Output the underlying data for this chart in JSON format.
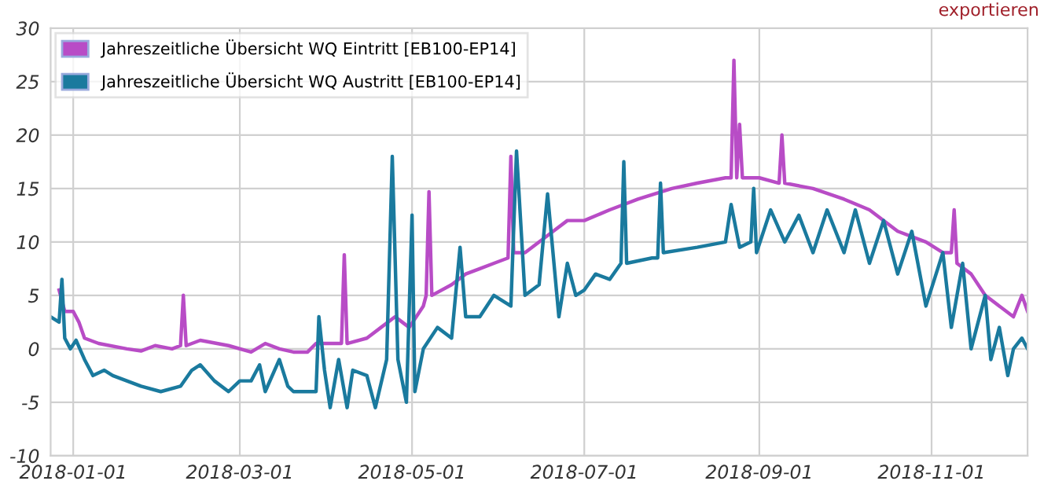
{
  "chart_data": {
    "type": "line",
    "xlim": [
      "2017-12-24",
      "2018-12-05"
    ],
    "xticks": [
      "2018-01-01",
      "2018-03-01",
      "2018-05-01",
      "2018-07-01",
      "2018-09-01",
      "2018-11-01"
    ],
    "ylim": [
      -10,
      30
    ],
    "yticks": [
      -10,
      -5,
      0,
      5,
      10,
      15,
      20,
      25,
      30
    ],
    "grid": true,
    "legend": "top left",
    "marker": "none",
    "line_style": "solid",
    "annotations": [
      "exportieren"
    ],
    "series": [
      {
        "name": "Jahreszeitliche Übersicht WQ Eintritt [EB100-EP14]",
        "color": "#b84cc6",
        "x": [
          "2017-12-27",
          "2017-12-29",
          "2018-01-01",
          "2018-01-03",
          "2018-01-05",
          "2018-01-10",
          "2018-01-20",
          "2018-01-25",
          "2018-01-30",
          "2018-02-05",
          "2018-02-08",
          "2018-02-09",
          "2018-02-10",
          "2018-02-15",
          "2018-02-25",
          "2018-03-05",
          "2018-03-10",
          "2018-03-15",
          "2018-03-20",
          "2018-03-25",
          "2018-03-28",
          "2018-04-03",
          "2018-04-06",
          "2018-04-07",
          "2018-04-08",
          "2018-04-15",
          "2018-04-20",
          "2018-04-25",
          "2018-04-30",
          "2018-05-05",
          "2018-05-06",
          "2018-05-07",
          "2018-05-08",
          "2018-05-15",
          "2018-05-20",
          "2018-05-25",
          "2018-05-30",
          "2018-06-04",
          "2018-06-05",
          "2018-06-06",
          "2018-06-10",
          "2018-06-20",
          "2018-06-25",
          "2018-07-01",
          "2018-07-10",
          "2018-07-20",
          "2018-08-01",
          "2018-08-10",
          "2018-08-20",
          "2018-08-22",
          "2018-08-23",
          "2018-08-24",
          "2018-08-25",
          "2018-08-26",
          "2018-08-27",
          "2018-09-01",
          "2018-09-08",
          "2018-09-09",
          "2018-09-10",
          "2018-09-20",
          "2018-10-01",
          "2018-10-10",
          "2018-10-20",
          "2018-10-30",
          "2018-11-05",
          "2018-11-08",
          "2018-11-09",
          "2018-11-10",
          "2018-11-15",
          "2018-11-20",
          "2018-11-25",
          "2018-11-30",
          "2018-12-03",
          "2018-12-05"
        ],
        "values": [
          5.5,
          3.5,
          3.5,
          2.5,
          1,
          0.5,
          0,
          -0.2,
          0.3,
          0,
          0.3,
          5,
          0.3,
          0.8,
          0.3,
          -0.3,
          0.5,
          0,
          -0.3,
          -0.3,
          0.5,
          0.5,
          0.5,
          8.8,
          0.5,
          1,
          2,
          3,
          2,
          4,
          5,
          14.7,
          5,
          6,
          7,
          7.5,
          8,
          8.5,
          18,
          9,
          9,
          11,
          12,
          12,
          13,
          14,
          15,
          15.5,
          16,
          16,
          27,
          16,
          21,
          16,
          16,
          16,
          15.5,
          20,
          15.5,
          15,
          14,
          13,
          11,
          10,
          9,
          9,
          13,
          8,
          7,
          5,
          4,
          3,
          5,
          3.5
        ]
      },
      {
        "name": "Jahreszeitliche Übersicht WQ Austritt [EB100-EP14]",
        "color": "#1a7a9e",
        "x": [
          "2017-12-24",
          "2017-12-27",
          "2017-12-28",
          "2017-12-29",
          "2017-12-31",
          "2018-01-02",
          "2018-01-05",
          "2018-01-08",
          "2018-01-12",
          "2018-01-15",
          "2018-01-25",
          "2018-02-01",
          "2018-02-08",
          "2018-02-12",
          "2018-02-15",
          "2018-02-20",
          "2018-02-25",
          "2018-03-01",
          "2018-03-05",
          "2018-03-08",
          "2018-03-10",
          "2018-03-15",
          "2018-03-18",
          "2018-03-20",
          "2018-03-28",
          "2018-03-29",
          "2018-03-31",
          "2018-04-02",
          "2018-04-05",
          "2018-04-08",
          "2018-04-10",
          "2018-04-15",
          "2018-04-18",
          "2018-04-22",
          "2018-04-24",
          "2018-04-26",
          "2018-04-29",
          "2018-05-01",
          "2018-05-02",
          "2018-05-05",
          "2018-05-10",
          "2018-05-15",
          "2018-05-18",
          "2018-05-20",
          "2018-05-25",
          "2018-05-30",
          "2018-06-05",
          "2018-06-07",
          "2018-06-10",
          "2018-06-15",
          "2018-06-18",
          "2018-06-22",
          "2018-06-25",
          "2018-06-28",
          "2018-07-01",
          "2018-07-05",
          "2018-07-10",
          "2018-07-14",
          "2018-07-15",
          "2018-07-16",
          "2018-07-25",
          "2018-07-27",
          "2018-07-28",
          "2018-07-29",
          "2018-08-10",
          "2018-08-20",
          "2018-08-22",
          "2018-08-25",
          "2018-08-29",
          "2018-08-30",
          "2018-08-31",
          "2018-09-05",
          "2018-09-10",
          "2018-09-15",
          "2018-09-20",
          "2018-09-25",
          "2018-10-01",
          "2018-10-05",
          "2018-10-10",
          "2018-10-15",
          "2018-10-20",
          "2018-10-25",
          "2018-10-30",
          "2018-11-05",
          "2018-11-08",
          "2018-11-12",
          "2018-11-15",
          "2018-11-20",
          "2018-11-22",
          "2018-11-25",
          "2018-11-28",
          "2018-11-30",
          "2018-12-03",
          "2018-12-05"
        ],
        "values": [
          3,
          2.5,
          6.5,
          1,
          0,
          0.8,
          -1,
          -2.5,
          -2,
          -2.5,
          -3.5,
          -4,
          -3.5,
          -2,
          -1.5,
          -3,
          -4,
          -3,
          -3,
          -1.5,
          -4,
          -1,
          -3.5,
          -4,
          -4,
          3,
          -2,
          -5.5,
          -1,
          -5.5,
          -2,
          -2.5,
          -5.5,
          -1,
          18,
          -1,
          -5,
          12.5,
          -4,
          0,
          2,
          1,
          9.5,
          3,
          3,
          5,
          4,
          18.5,
          5,
          6,
          14.5,
          3,
          8,
          5,
          5.5,
          7,
          6.5,
          8,
          17.5,
          8,
          8.5,
          8.5,
          15.5,
          9,
          9.5,
          10,
          13.5,
          9.5,
          10,
          15,
          9,
          13,
          10,
          12.5,
          9,
          13,
          9,
          13,
          8,
          12,
          7,
          11,
          4,
          9,
          2,
          8,
          0,
          5,
          -1,
          2,
          -2.5,
          0,
          1,
          0
        ]
      }
    ]
  }
}
